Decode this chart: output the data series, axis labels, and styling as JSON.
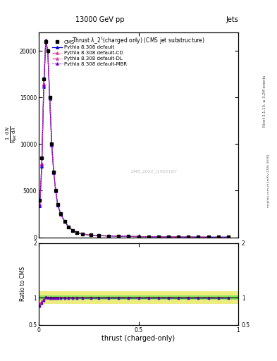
{
  "title_top": "13000 GeV pp",
  "title_right": "Jets",
  "plot_title": "Thrust $\\lambda$_2$^1$(charged only) (CMS jet substructure)",
  "xlabel": "thrust (charged-only)",
  "ylabel_main": "1 / $\\mathrm{N_{jet}}$ d$\\mathrm{N}$/d$\\lambda$",
  "ylabel_ratio": "Ratio to CMS",
  "watermark": "CMS_2021_I1920187",
  "rivet_text": "Rivet 3.1.10, ≥ 3.2M events",
  "mcplots_text": "mcplots.cern.ch [arXiv:1306.3436]",
  "legend_entries": [
    "CMS",
    "Pythia 8.308 default",
    "Pythia 8.308 default-CD",
    "Pythia 8.308 default-DL",
    "Pythia 8.308 default-MBR"
  ],
  "xlim": [
    0,
    1
  ],
  "ylim_main": [
    0,
    22000
  ],
  "ylim_ratio": [
    0.5,
    2.0
  ],
  "yticks_main": [
    0,
    5000,
    10000,
    15000,
    20000
  ],
  "ytick_labels_main": [
    "0",
    "5000",
    "10000",
    "15000",
    "20000"
  ],
  "yticks_ratio": [
    0.5,
    1.0,
    2.0
  ],
  "ytick_labels_ratio": [
    "0.5",
    "1",
    "2"
  ],
  "background_color": "#ffffff",
  "x_thrust": [
    0.005,
    0.015,
    0.025,
    0.035,
    0.045,
    0.055,
    0.065,
    0.075,
    0.085,
    0.095,
    0.11,
    0.13,
    0.15,
    0.17,
    0.19,
    0.22,
    0.26,
    0.3,
    0.35,
    0.4,
    0.45,
    0.5,
    0.55,
    0.6,
    0.65,
    0.7,
    0.75,
    0.8,
    0.85,
    0.9,
    0.95
  ],
  "y_cms": [
    4000,
    8500,
    17000,
    21000,
    20000,
    15000,
    10000,
    7000,
    5000,
    3500,
    2500,
    1700,
    1100,
    750,
    520,
    340,
    240,
    175,
    140,
    115,
    90,
    72,
    58,
    46,
    38,
    30,
    24,
    19,
    14,
    11,
    9
  ],
  "ratio_default": [
    0.85,
    0.9,
    0.95,
    1.0,
    1.0,
    0.99,
    0.99,
    0.99,
    0.99,
    0.99,
    0.99,
    0.99,
    0.99,
    0.99,
    0.99,
    0.99,
    0.99,
    0.99,
    0.99,
    0.99,
    0.99,
    0.99,
    0.99,
    0.99,
    0.99,
    0.99,
    0.99,
    0.99,
    0.99,
    0.99,
    0.99
  ],
  "ratio_cd": [
    0.88,
    0.93,
    0.97,
    1.01,
    1.0,
    1.0,
    1.0,
    1.0,
    1.0,
    1.0,
    1.0,
    1.0,
    1.0,
    1.0,
    1.0,
    1.0,
    1.0,
    1.0,
    1.0,
    1.0,
    1.0,
    1.0,
    1.0,
    1.0,
    1.0,
    1.0,
    1.0,
    1.0,
    1.0,
    1.0,
    1.0
  ],
  "ratio_dl": [
    0.88,
    0.93,
    0.97,
    1.01,
    1.0,
    1.0,
    1.0,
    1.0,
    1.0,
    1.0,
    1.0,
    1.0,
    1.0,
    1.0,
    1.0,
    1.0,
    1.0,
    1.0,
    1.0,
    1.0,
    1.0,
    1.0,
    1.0,
    1.0,
    1.0,
    1.0,
    1.0,
    1.0,
    1.0,
    1.0,
    1.0
  ],
  "ratio_mbr": [
    0.86,
    0.91,
    0.96,
    1.01,
    1.0,
    0.995,
    0.995,
    0.995,
    0.995,
    0.995,
    0.995,
    0.995,
    0.995,
    0.995,
    0.995,
    0.995,
    0.995,
    0.995,
    0.995,
    0.995,
    0.995,
    0.995,
    0.995,
    0.995,
    0.995,
    0.995,
    0.995,
    0.995,
    0.995,
    0.995,
    0.995
  ],
  "line_colors": [
    "#0000dd",
    "#dd4499",
    "#dd4499",
    "#7700cc"
  ],
  "line_styles": [
    "-",
    "-.",
    "-.",
    ":"
  ],
  "green_inner": 0.04,
  "yellow_outer": 0.12
}
